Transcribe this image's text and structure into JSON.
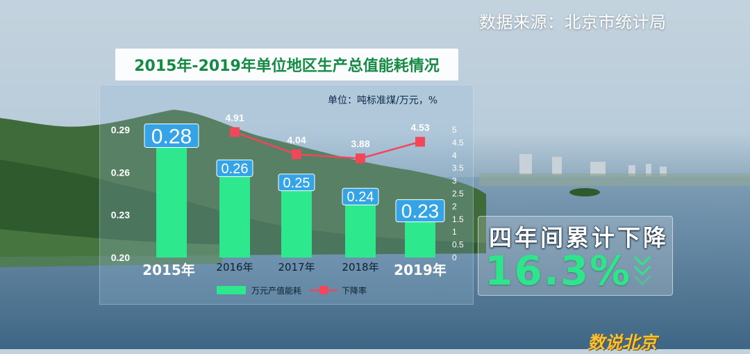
{
  "source": "数据来源：北京市统计局",
  "title": "2015年-2019年单位地区生产总值能耗情况",
  "unit": "单位：吨标准煤/万元，%",
  "highlight": {
    "label": "四年间累计下降",
    "value": "16.3%"
  },
  "logo": "数说北京",
  "colors": {
    "bar": "#2ee88e",
    "line": "#f0475a",
    "label_box": "#35a4e6",
    "title": "#148a44"
  },
  "chart_data": {
    "type": "bar",
    "title": "2015年-2019年单位地区生产总值能耗情况",
    "unit": "单位：吨标准煤/万元，%",
    "categories": [
      "2015年",
      "2016年",
      "2017年",
      "2018年",
      "2019年"
    ],
    "series": [
      {
        "name": "万元产值能耗",
        "type": "bar",
        "axis": "left",
        "values": [
          0.28,
          0.26,
          0.25,
          0.24,
          0.23
        ]
      },
      {
        "name": "下降率",
        "type": "line",
        "axis": "right",
        "values": [
          null,
          4.91,
          4.04,
          3.88,
          4.53
        ]
      }
    ],
    "y_left": {
      "min": 0.2,
      "max": 0.29,
      "ticks": [
        "0.20",
        "0.23",
        "0.26",
        "0.29"
      ]
    },
    "y_right": {
      "min": 0,
      "max": 5,
      "ticks": [
        "0",
        "0.5",
        "1",
        "1.5",
        "2",
        "2.5",
        "3",
        "3.5",
        "4",
        "4.5",
        "5"
      ]
    },
    "bar_labels": [
      "0.28",
      "0.26",
      "0.25",
      "0.24",
      "0.23"
    ],
    "line_labels": [
      "",
      "4.91",
      "4.04",
      "3.88",
      "4.53"
    ],
    "legend": [
      "万元产值能耗",
      "下降率"
    ],
    "legend_position": "bottom",
    "grid": false
  }
}
